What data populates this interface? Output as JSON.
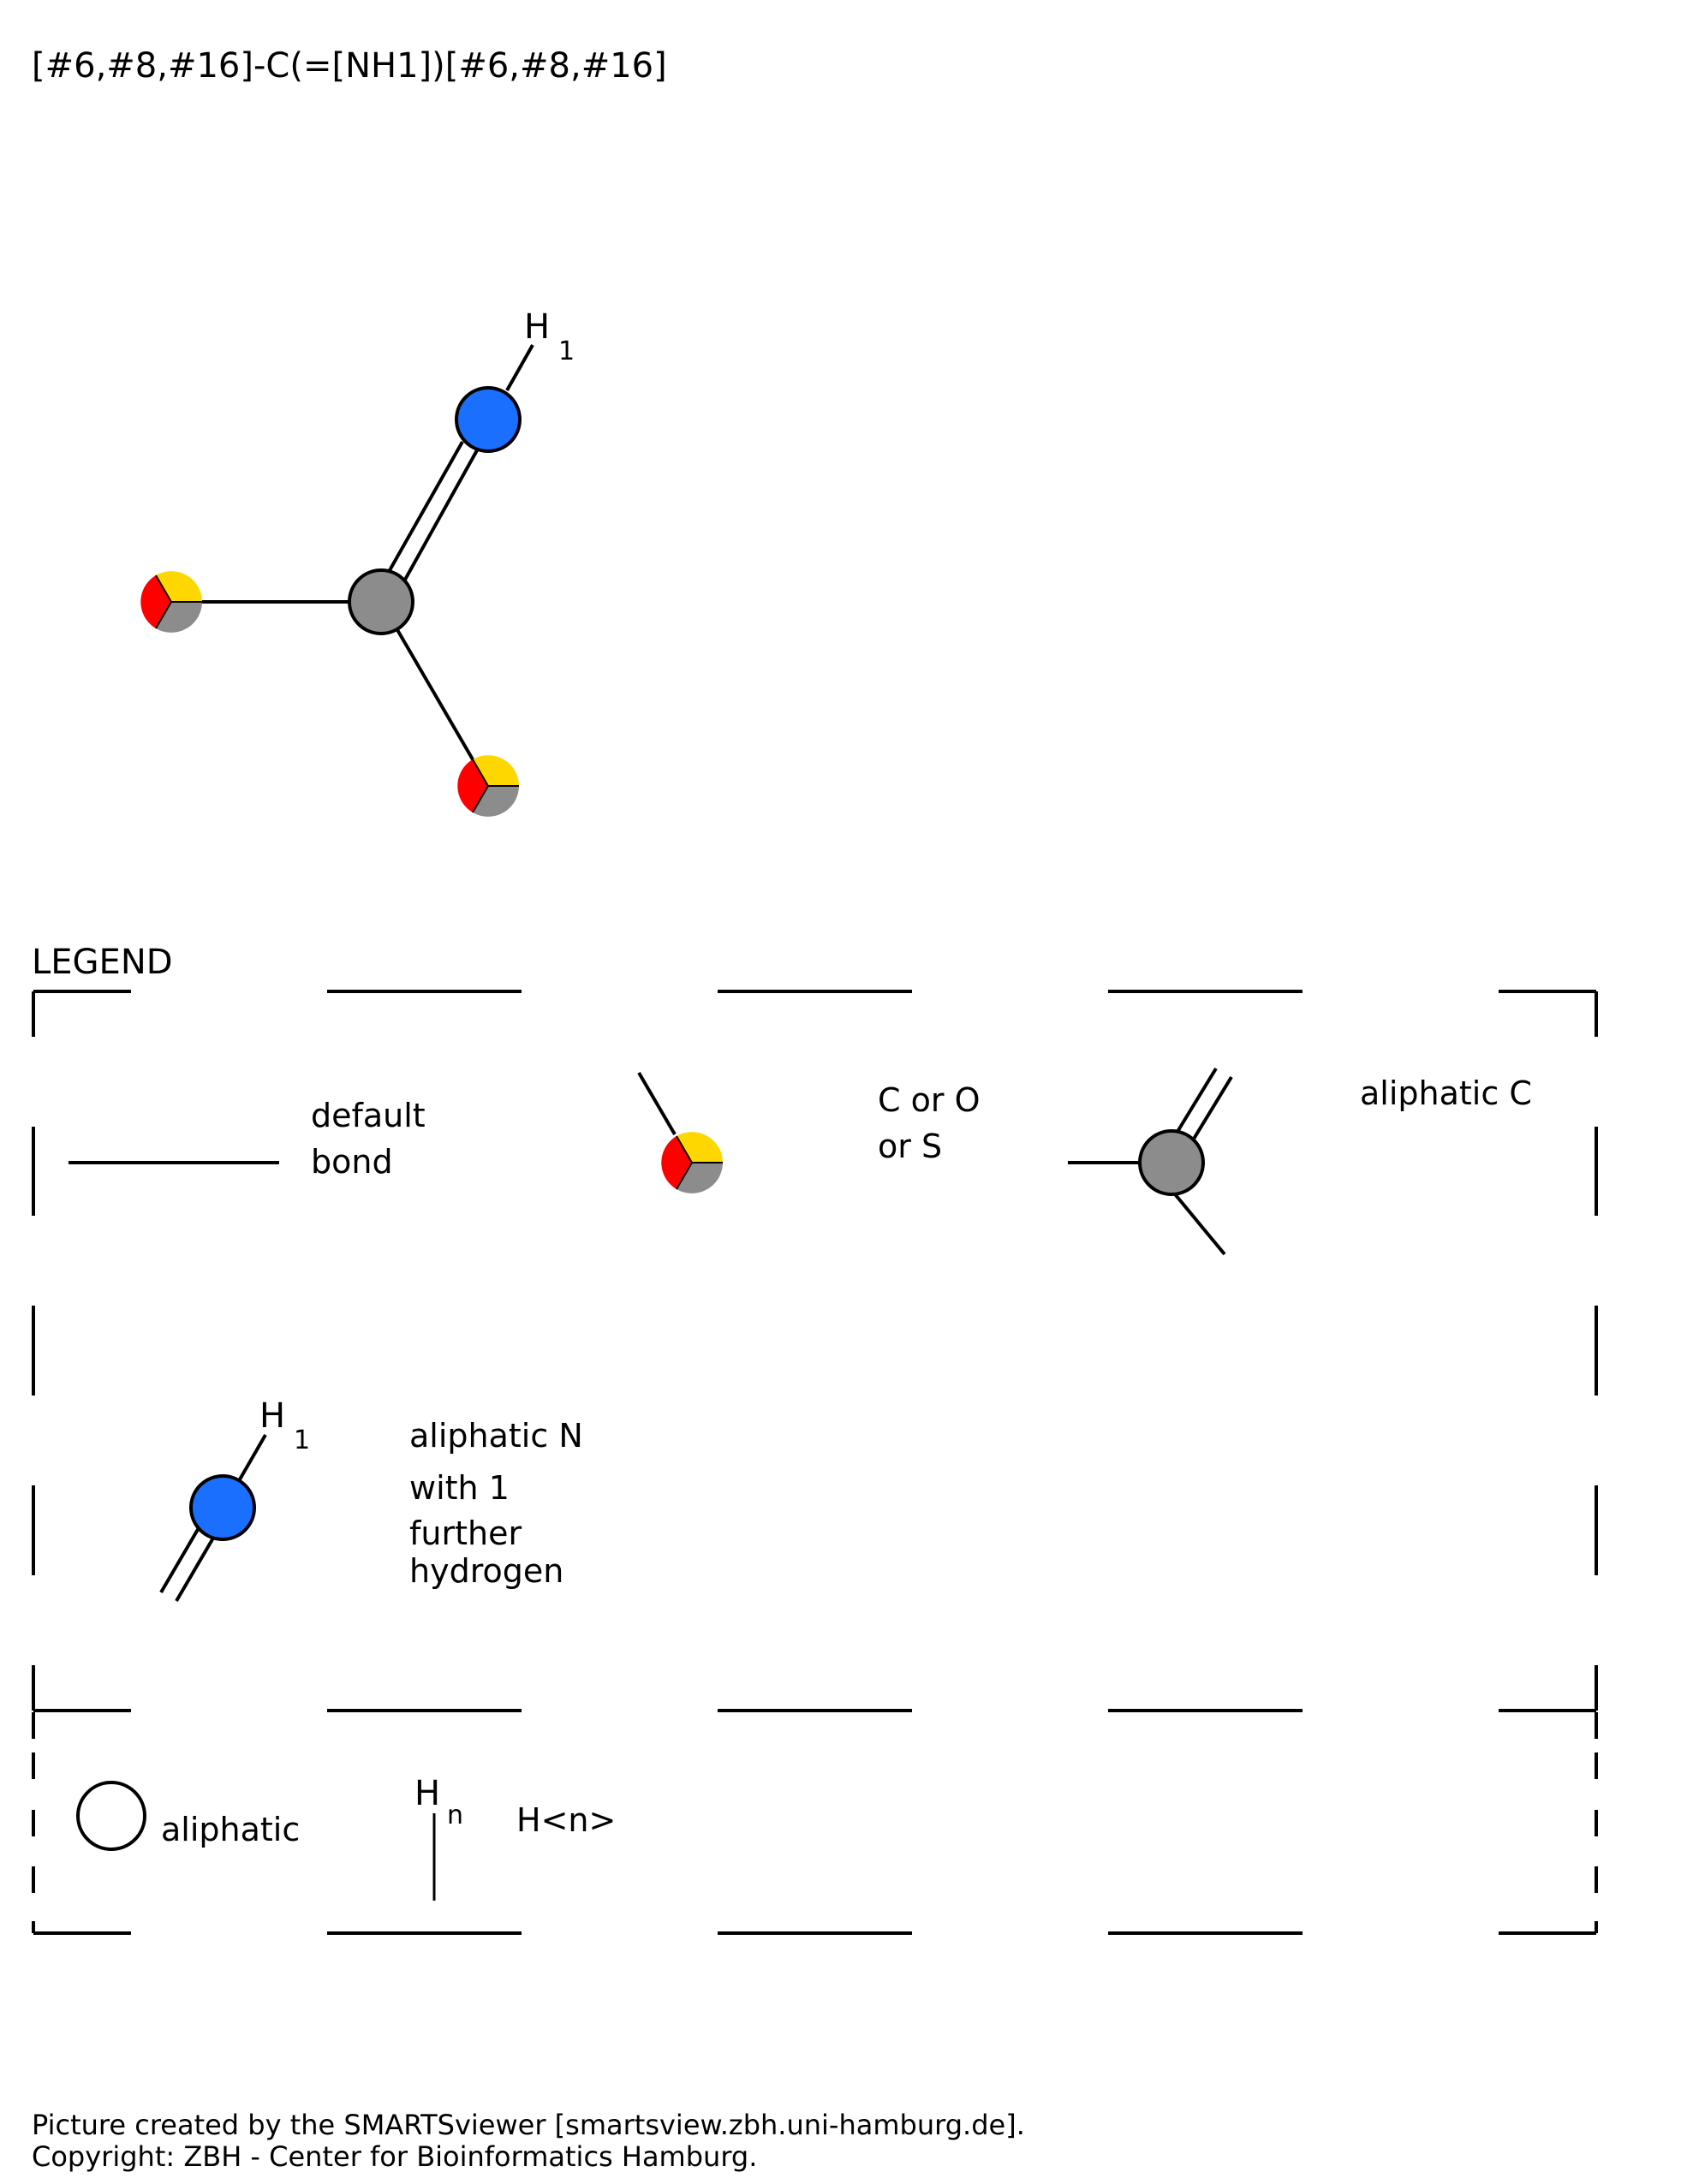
{
  "smarts": "[#6,#8,#16]-C(=[NH1])[#6,#8,#16]",
  "molecule": {
    "nitrogen_hydrogen_label": "H",
    "nitrogen_hydrogen_count": "1"
  },
  "legend": {
    "title": "LEGEND",
    "default_bond": {
      "line1": "default",
      "line2": "bond"
    },
    "c_or_o_or_s": {
      "line1": "C or O",
      "line2": "or S"
    },
    "aliphatic_c": {
      "label": "aliphatic C"
    },
    "aliphatic_n": {
      "h_label": "H",
      "h_count": "1",
      "line1": "aliphatic N",
      "line2": "with 1",
      "line3": "further",
      "line4": "hydrogen"
    },
    "aliphatic": {
      "label": "aliphatic"
    },
    "h_n": {
      "h_label": "H",
      "h_sub": "n",
      "label": "H<n>"
    }
  },
  "footer": {
    "line1": "Picture created by the SMARTSviewer [smartsview.zbh.uni-hamburg.de].",
    "line2": "Copyright: ZBH - Center for Bioinformatics Hamburg."
  },
  "colors": {
    "carbon": "#8c8c8c",
    "nitrogen": "#1a6fff",
    "oxygen": "#ff0000",
    "sulfur": "#ffd700",
    "background": "#ffffff",
    "line": "#000000"
  },
  "icons": [
    "atom-c-o-s-icon",
    "atom-carbon-icon",
    "atom-nitrogen-icon",
    "aliphatic-circle-icon"
  ]
}
